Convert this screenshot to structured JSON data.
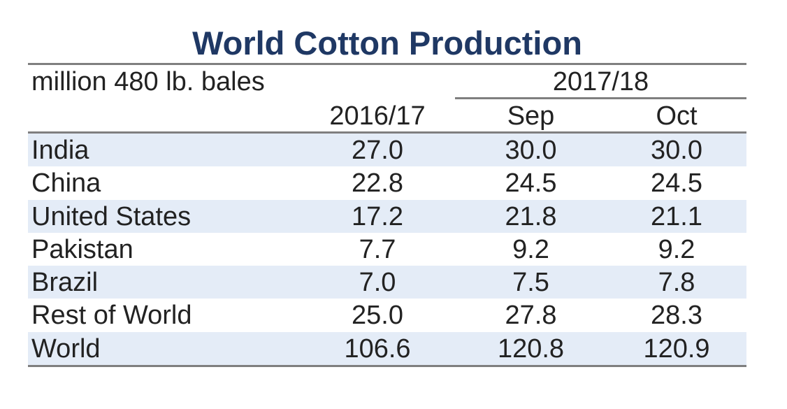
{
  "chart_data": {
    "type": "table",
    "title": "World Cotton Production",
    "units": "million 480 lb. bales",
    "group_header": "2017/18",
    "columns": [
      "2016/17",
      "Sep",
      "Oct"
    ],
    "rows": [
      {
        "name": "India",
        "values": [
          "27.0",
          "30.0",
          "30.0"
        ]
      },
      {
        "name": "China",
        "values": [
          "22.8",
          "24.5",
          "24.5"
        ]
      },
      {
        "name": "United States",
        "values": [
          "17.2",
          "21.8",
          "21.1"
        ]
      },
      {
        "name": "Pakistan",
        "values": [
          "7.7",
          "9.2",
          "9.2"
        ]
      },
      {
        "name": "Brazil",
        "values": [
          "7.0",
          "7.5",
          "7.8"
        ]
      },
      {
        "name": "Rest of World",
        "values": [
          "25.0",
          "27.8",
          "28.3"
        ]
      },
      {
        "name": "World",
        "values": [
          "106.6",
          "120.8",
          "120.9"
        ]
      }
    ]
  },
  "colors": {
    "title": "#1f3864",
    "row_shade": "#e4ecf7",
    "rule": "#7f7f7f",
    "text": "#222222"
  }
}
